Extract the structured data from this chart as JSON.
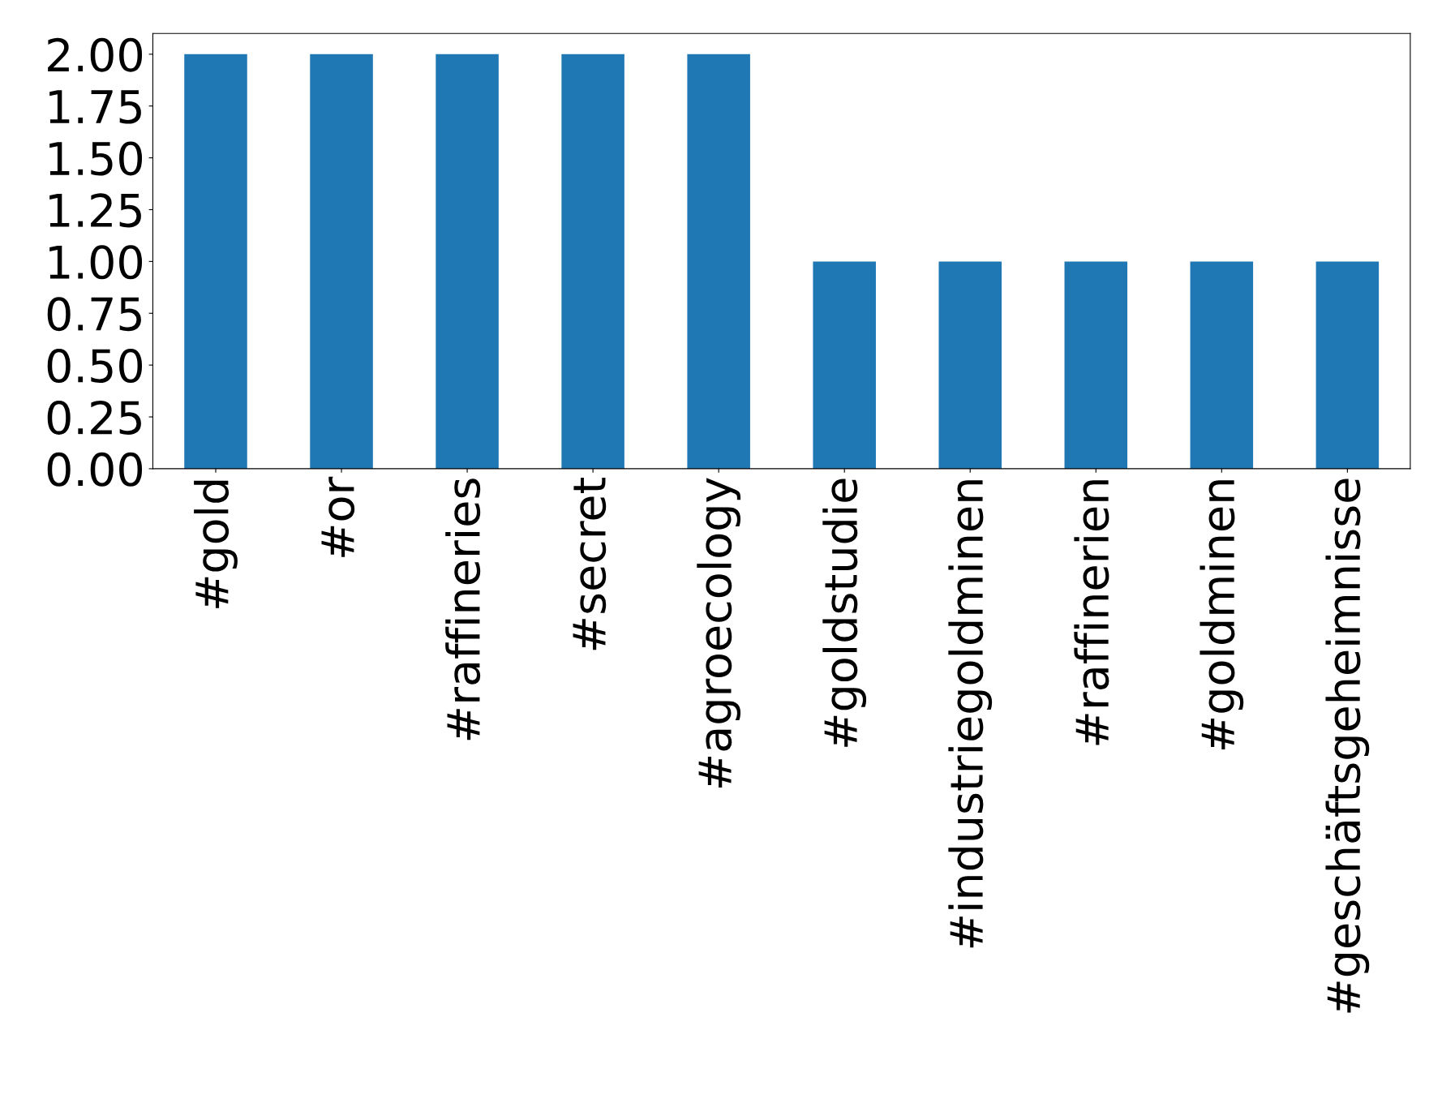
{
  "chart_data": {
    "type": "bar",
    "categories": [
      "#gold",
      "#or",
      "#raffineries",
      "#secret",
      "#agroecology",
      "#goldstudie",
      "#industriegoldminen",
      "#raffinerien",
      "#goldminen",
      "#geschäftsgeheimnisse"
    ],
    "values": [
      2,
      2,
      2,
      2,
      2,
      1,
      1,
      1,
      1,
      1
    ],
    "color": "#1f77b4",
    "ylim": [
      0,
      2.1
    ],
    "yticks": [
      {
        "value": 0,
        "label": "0.00"
      },
      {
        "value": 0.25,
        "label": "0.25"
      },
      {
        "value": 0.5,
        "label": "0.50"
      },
      {
        "value": 0.75,
        "label": "0.75"
      },
      {
        "value": 1,
        "label": "1.00"
      },
      {
        "value": 1.25,
        "label": "1.25"
      },
      {
        "value": 1.5,
        "label": "1.50"
      },
      {
        "value": 1.75,
        "label": "1.75"
      },
      {
        "value": 2,
        "label": "2.00"
      }
    ],
    "grid": false,
    "legend": false
  }
}
